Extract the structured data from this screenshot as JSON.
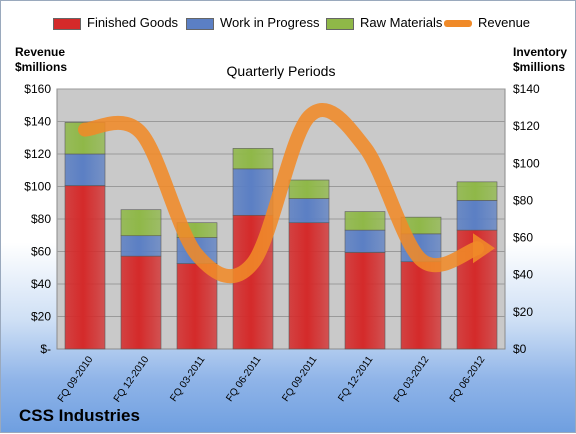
{
  "company": "CSS Industries",
  "chart_data": {
    "type": "bar",
    "subtype": "stacked-bar-with-line",
    "title": "Quarterly Periods",
    "categories": [
      "FQ 09-2010",
      "FQ 12-2010",
      "FQ 03-2011",
      "FQ 06-2011",
      "FQ 09-2011",
      "FQ 12-2011",
      "FQ 03-2012",
      "FQ 06-2012"
    ],
    "series": [
      {
        "name": "Finished Goods",
        "axis": "right",
        "color": "#d42a2a",
        "values": [
          88,
          50,
          46,
          72,
          68,
          52,
          47,
          64
        ]
      },
      {
        "name": "Work in Progress",
        "axis": "right",
        "color": "#5b7fc4",
        "values": [
          17,
          11,
          14,
          25,
          13,
          12,
          15,
          16
        ]
      },
      {
        "name": "Raw Materials",
        "axis": "right",
        "color": "#8fb848",
        "values": [
          17,
          14,
          8,
          11,
          10,
          10,
          9,
          10
        ]
      },
      {
        "name": "Revenue",
        "axis": "left",
        "type": "line",
        "color": "#f08a28",
        "values": [
          135,
          133,
          58,
          53,
          143,
          124,
          55,
          62
        ]
      }
    ],
    "ylabel_left": "Revenue\n$millions",
    "ylabel_right": "Inventory\n$millions",
    "ylim_left": [
      0,
      160
    ],
    "ylim_right": [
      0,
      140
    ],
    "yticks_left": [
      "$-",
      "$20",
      "$40",
      "$60",
      "$80",
      "$100",
      "$120",
      "$140",
      "$160"
    ],
    "yticks_right": [
      "$0",
      "$20",
      "$40",
      "$60",
      "$80",
      "$100",
      "$120",
      "$140"
    ],
    "grid": true,
    "legend": "top"
  }
}
